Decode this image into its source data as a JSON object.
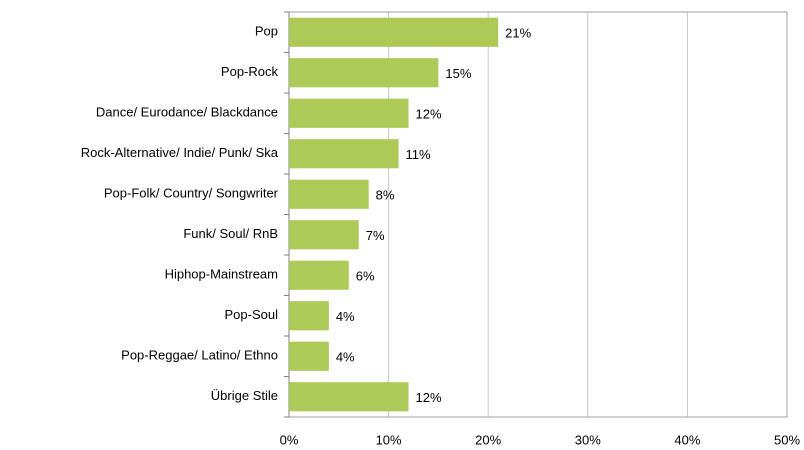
{
  "chart_data": {
    "type": "bar",
    "orientation": "horizontal",
    "categories": [
      "Pop",
      "Pop-Rock",
      "Dance/ Eurodance/ Blackdance",
      "Rock-Alternative/ Indie/ Punk/ Ska",
      "Pop-Folk/ Country/ Songwriter",
      "Funk/ Soul/ RnB",
      "Hiphop-Mainstream",
      "Pop-Soul",
      "Pop-Reggae/ Latino/ Ethno",
      "Übrige Stile"
    ],
    "values": [
      21,
      15,
      12,
      11,
      8,
      7,
      6,
      4,
      4,
      12
    ],
    "value_labels": [
      "21%",
      "15%",
      "12%",
      "11%",
      "8%",
      "7%",
      "6%",
      "4%",
      "4%",
      "12%"
    ],
    "color": "#adc957",
    "xlim": [
      0,
      50
    ],
    "xticks": [
      {
        "value": 0,
        "label": "0%"
      },
      {
        "value": 10,
        "label": "10%"
      },
      {
        "value": 20,
        "label": "20%"
      },
      {
        "value": 30,
        "label": "30%"
      },
      {
        "value": 40,
        "label": "40%"
      },
      {
        "value": 50,
        "label": "50%"
      }
    ],
    "grid": true
  }
}
